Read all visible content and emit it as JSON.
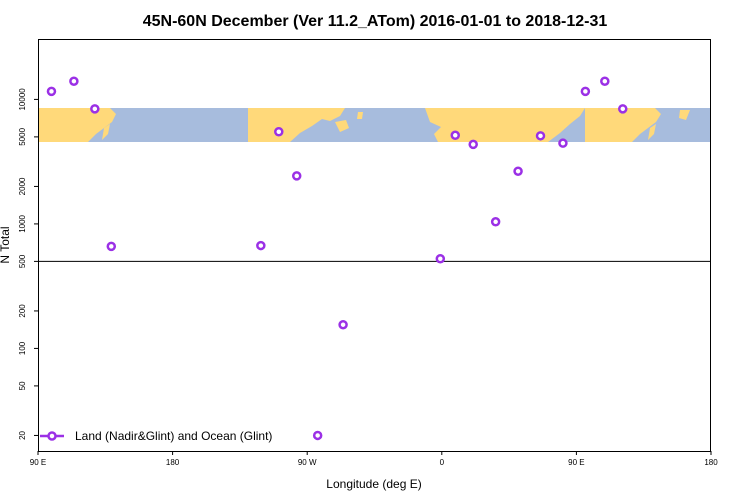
{
  "chart_data": {
    "type": "scatter",
    "title": "45N-60N December (Ver 11.2_ATom)   2016-01-01 to 2018-12-31",
    "xlabel": "Longitude (deg E)",
    "ylabel": "N Total",
    "x_scale": "linear",
    "y_scale": "log",
    "xlim": [
      90,
      540
    ],
    "ylim": [
      15,
      30000
    ],
    "x_ticks": [
      {
        "value": 90,
        "label": "90 E"
      },
      {
        "value": 180,
        "label": "180"
      },
      {
        "value": 270,
        "label": "90 W"
      },
      {
        "value": 360,
        "label": "0"
      },
      {
        "value": 450,
        "label": "90 E"
      },
      {
        "value": 540,
        "label": "180"
      }
    ],
    "y_ticks": [
      {
        "value": 20,
        "label": "20"
      },
      {
        "value": 50,
        "label": "50"
      },
      {
        "value": 100,
        "label": "100"
      },
      {
        "value": 200,
        "label": "200"
      },
      {
        "value": 500,
        "label": "500"
      },
      {
        "value": 1000,
        "label": "1000"
      },
      {
        "value": 2000,
        "label": "2000"
      },
      {
        "value": 5000,
        "label": "5000"
      },
      {
        "value": 10000,
        "label": "10000"
      }
    ],
    "reference_line_y": 500,
    "map_band": {
      "y_min": 2800,
      "y_max": 5900,
      "land_color": "#FFD97A",
      "ocean_color": "#A7BCDD"
    },
    "series": [
      {
        "name": "Land (Nadir&Glint) and Ocean (Glint)",
        "color": "#9B30E6",
        "marker": "open-circle",
        "x": [
          99,
          114,
          128,
          139,
          239,
          251,
          263,
          277,
          294,
          359,
          369,
          381,
          396,
          411,
          426,
          441,
          456,
          469,
          481
        ],
        "y": [
          11600,
          14000,
          8400,
          660,
          670,
          5500,
          2430,
          20,
          155,
          525,
          5150,
          4350,
          1040,
          2650,
          5100,
          4450,
          11600,
          14000,
          8400
        ]
      }
    ],
    "legend_position": "bottom-left",
    "grid": false
  }
}
